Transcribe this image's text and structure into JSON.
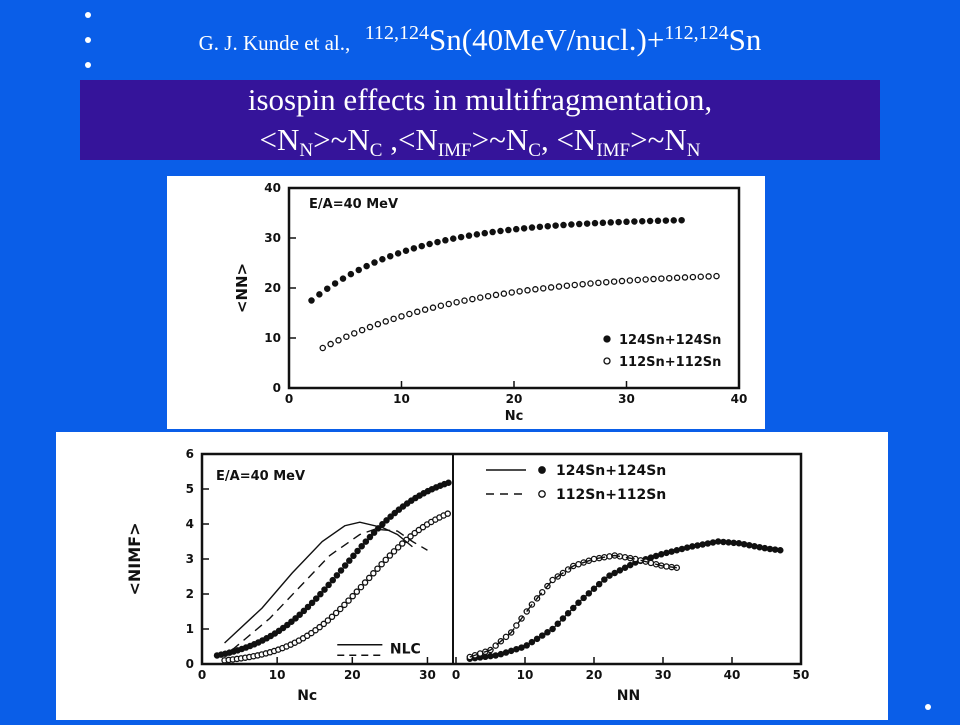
{
  "slide": {
    "background_color": "#0a5ee8",
    "band_color": "#35149a",
    "title_line1": {
      "author": "G. J. Kunde et al.,",
      "proj_mass": "112,124",
      "proj_elem": "Sn(40MeV/nucl.)+",
      "targ_mass": "112,124",
      "targ_elem": "Sn"
    },
    "title_line2": "isospin effects in multifragmentation,",
    "title_line3": {
      "p1a": "<N",
      "p1s": "N",
      "p1b": ">~N",
      "p1c": "C",
      "sep1": " ,",
      "p2a": "<N",
      "p2s": "IMF",
      "p2b": ">~N",
      "p2c": "C",
      "sep2": ", ",
      "p3a": "<N",
      "p3s": "IMF",
      "p3b": ">~N",
      "p3c": "N"
    }
  },
  "chart_data": [
    {
      "type": "scatter",
      "annotation": "E/A=40 MeV",
      "xlabel": "Nc",
      "ylabel": "<NN>",
      "xlim": [
        0,
        40
      ],
      "ylim": [
        0,
        40
      ],
      "xticks": [
        0,
        10,
        20,
        30,
        40
      ],
      "yticks": [
        0,
        10,
        20,
        30,
        40
      ],
      "legend_position": "bottom-right",
      "series": [
        {
          "name": "124Sn+124Sn",
          "marker": "filled",
          "x_start": 2,
          "x_end": 35,
          "y_start": 17.5,
          "y_plateau": 34,
          "rate": 0.11
        },
        {
          "name": "112Sn+112Sn",
          "marker": "open",
          "x_start": 3,
          "x_end": 38,
          "y_start": 8,
          "y_plateau": 23.5,
          "rate": 0.075
        }
      ]
    },
    {
      "type": "scatter",
      "annotation": "E/A=40 MeV",
      "xlabel": "Nc",
      "ylabel": "<NIMF>",
      "xlim": [
        0,
        33
      ],
      "ylim": [
        0,
        6
      ],
      "xticks": [
        0,
        10,
        20,
        30
      ],
      "yticks": [
        0,
        1,
        2,
        3,
        4,
        5,
        6
      ],
      "line_label": "NLC",
      "series": [
        {
          "name": "124Sn+124Sn",
          "marker": "filled",
          "x_start": 2,
          "x_end": 33,
          "mid": 19,
          "width": 5.5,
          "top": 5.6
        },
        {
          "name": "112Sn+112Sn",
          "marker": "open",
          "x_start": 3,
          "x_end": 33,
          "mid": 22,
          "width": 5.0,
          "top": 4.8
        }
      ],
      "lines": [
        {
          "style": "solid",
          "points": [
            [
              3,
              0.6
            ],
            [
              8,
              1.6
            ],
            [
              12,
              2.6
            ],
            [
              16,
              3.5
            ],
            [
              19,
              3.95
            ],
            [
              21,
              4.05
            ],
            [
              24,
              3.9
            ],
            [
              26,
              3.7
            ],
            [
              28,
              3.35
            ]
          ]
        },
        {
          "style": "dashed",
          "points": [
            [
              4,
              0.4
            ],
            [
              9,
              1.3
            ],
            [
              13,
              2.2
            ],
            [
              17,
              3.1
            ],
            [
              21,
              3.7
            ],
            [
              23,
              3.85
            ],
            [
              26,
              3.8
            ],
            [
              28,
              3.5
            ],
            [
              30,
              3.25
            ]
          ]
        }
      ]
    },
    {
      "type": "scatter",
      "xlabel": "NN",
      "xlim": [
        0,
        50
      ],
      "ylim": [
        0,
        6
      ],
      "xticks": [
        0,
        10,
        20,
        30,
        40,
        50
      ],
      "legend_position": "top",
      "series": [
        {
          "name": "124Sn+124Sn",
          "marker": "filled",
          "line_style": "solid",
          "points": [
            [
              2,
              0.15
            ],
            [
              6,
              0.25
            ],
            [
              10,
              0.5
            ],
            [
              14,
              1.0
            ],
            [
              18,
              1.8
            ],
            [
              22,
              2.5
            ],
            [
              26,
              2.9
            ],
            [
              30,
              3.15
            ],
            [
              34,
              3.35
            ],
            [
              38,
              3.5
            ],
            [
              41,
              3.45
            ],
            [
              45,
              3.3
            ],
            [
              47,
              3.25
            ]
          ]
        },
        {
          "name": "112Sn+112Sn",
          "marker": "open",
          "line_style": "dashed",
          "points": [
            [
              2,
              0.2
            ],
            [
              5,
              0.4
            ],
            [
              8,
              0.9
            ],
            [
              11,
              1.7
            ],
            [
              14,
              2.4
            ],
            [
              17,
              2.8
            ],
            [
              20,
              3.0
            ],
            [
              23,
              3.1
            ],
            [
              26,
              3.0
            ],
            [
              28,
              2.9
            ],
            [
              30,
              2.8
            ],
            [
              32,
              2.75
            ]
          ]
        }
      ]
    }
  ]
}
